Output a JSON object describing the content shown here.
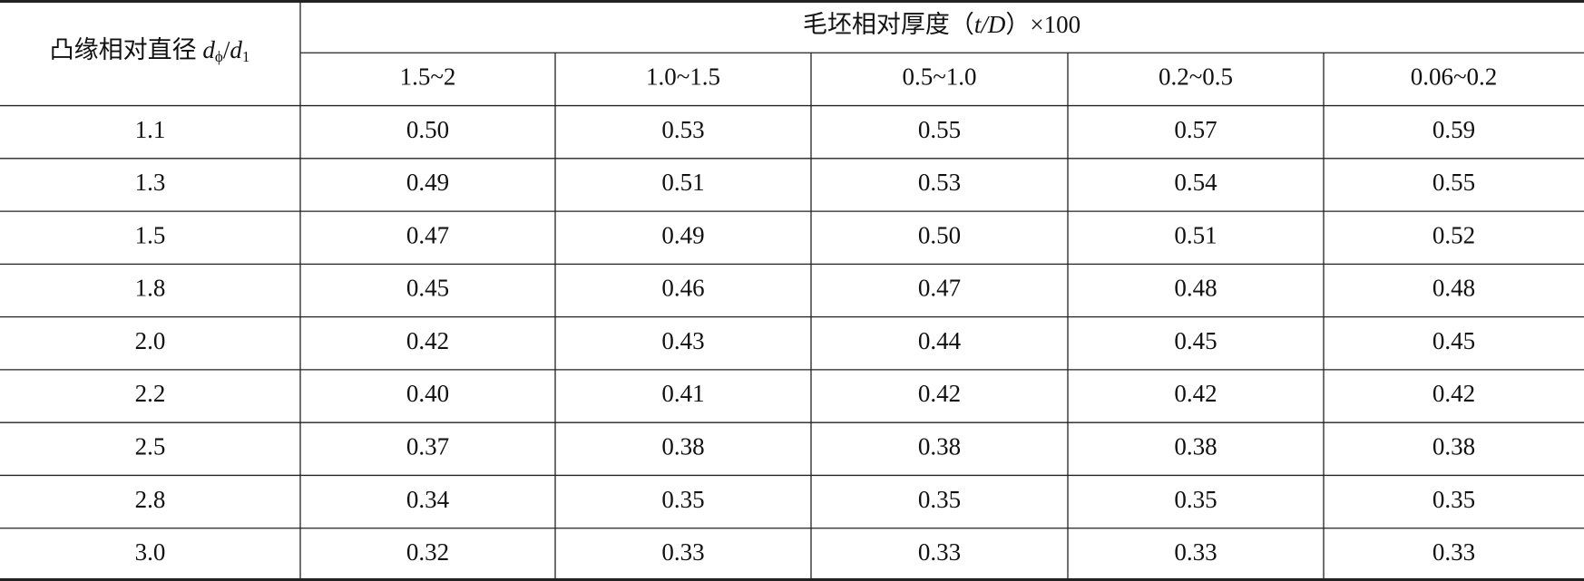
{
  "table": {
    "row_header": [
      "凸缘相对直径 ",
      "d",
      "ϕ",
      "/",
      "d",
      "1"
    ],
    "group_header": [
      "毛坯相对厚度（",
      "t/D",
      "）×100"
    ],
    "columns": [
      "1.5~2",
      "1.0~1.5",
      "0.5~1.0",
      "0.2~0.5",
      "0.06~0.2"
    ],
    "rows": [
      [
        "1.1",
        "0.50",
        "0.53",
        "0.55",
        "0.57",
        "0.59"
      ],
      [
        "1.3",
        "0.49",
        "0.51",
        "0.53",
        "0.54",
        "0.55"
      ],
      [
        "1.5",
        "0.47",
        "0.49",
        "0.50",
        "0.51",
        "0.52"
      ],
      [
        "1.8",
        "0.45",
        "0.46",
        "0.47",
        "0.48",
        "0.48"
      ],
      [
        "2.0",
        "0.42",
        "0.43",
        "0.44",
        "0.45",
        "0.45"
      ],
      [
        "2.2",
        "0.40",
        "0.41",
        "0.42",
        "0.42",
        "0.42"
      ],
      [
        "2.5",
        "0.37",
        "0.38",
        "0.38",
        "0.38",
        "0.38"
      ],
      [
        "2.8",
        "0.34",
        "0.35",
        "0.35",
        "0.35",
        "0.35"
      ],
      [
        "3.0",
        "0.32",
        "0.33",
        "0.33",
        "0.33",
        "0.33"
      ]
    ]
  }
}
